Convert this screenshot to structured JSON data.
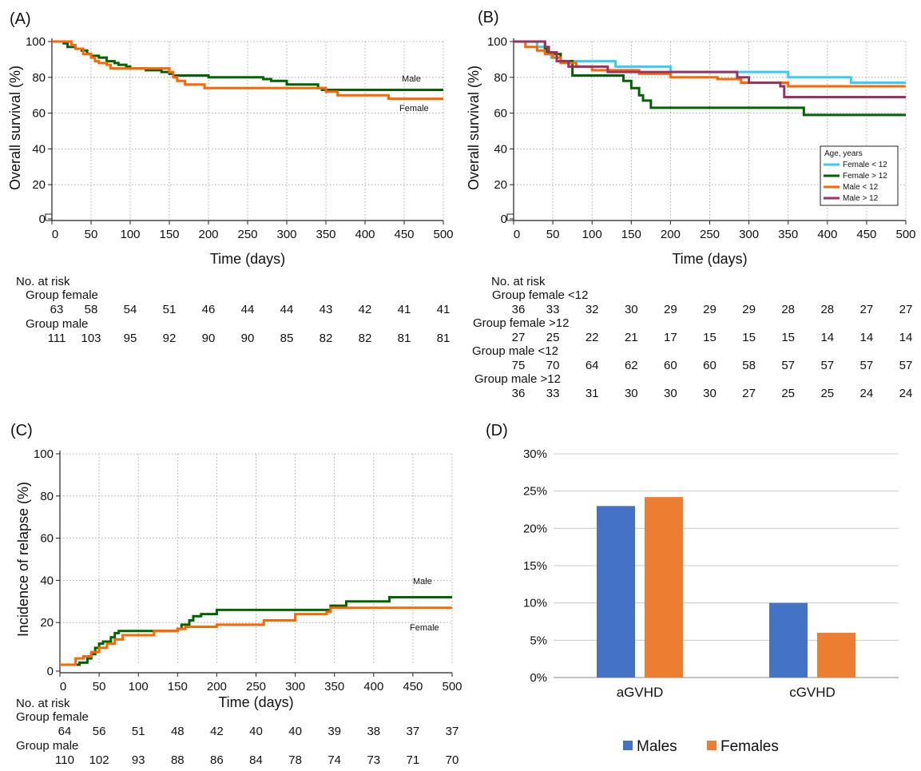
{
  "chart_data": [
    {
      "panel": "(A)",
      "type": "line",
      "step": true,
      "xlabel": "Time (days)",
      "ylabel": "Overall survival (%)",
      "xlim": [
        0,
        500
      ],
      "ylim": [
        0,
        100
      ],
      "xticks": [
        0,
        50,
        100,
        150,
        200,
        250,
        300,
        350,
        400,
        450,
        500
      ],
      "yticks": [
        0,
        20,
        40,
        60,
        80,
        100
      ],
      "grid": true,
      "series": [
        {
          "name": "Male",
          "color": "#006400",
          "x": [
            0,
            15,
            20,
            30,
            38,
            45,
            50,
            60,
            70,
            80,
            85,
            95,
            100,
            120,
            140,
            150,
            155,
            200,
            270,
            280,
            300,
            340,
            345,
            500
          ],
          "y": [
            100,
            99,
            97,
            96,
            95,
            93,
            92,
            91,
            89,
            88,
            87,
            86,
            85,
            84,
            83,
            82,
            81,
            80,
            79,
            78,
            76,
            74,
            73,
            73
          ]
        },
        {
          "name": "Female",
          "color": "#ff6600",
          "x": [
            0,
            25,
            30,
            40,
            50,
            55,
            60,
            70,
            75,
            150,
            155,
            160,
            170,
            195,
            340,
            350,
            365,
            430,
            500
          ],
          "y": [
            100,
            98,
            96,
            93,
            91,
            89,
            88,
            87,
            85,
            83,
            80,
            78,
            76,
            74,
            74,
            72,
            70,
            68,
            68
          ]
        }
      ],
      "risk_table": {
        "title": "No. at risk",
        "groups": [
          {
            "label": "Group female",
            "values": [
              63,
              58,
              54,
              51,
              46,
              44,
              44,
              43,
              42,
              41,
              41
            ]
          },
          {
            "label": "Group male",
            "values": [
              111,
              103,
              95,
              92,
              90,
              90,
              85,
              82,
              82,
              81,
              81
            ]
          }
        ]
      }
    },
    {
      "panel": "(B)",
      "type": "line",
      "step": true,
      "xlabel": "Time (days)",
      "ylabel": "Overall survival (%)",
      "xlim": [
        0,
        500
      ],
      "ylim": [
        0,
        100
      ],
      "xticks": [
        0,
        50,
        100,
        150,
        200,
        250,
        300,
        350,
        400,
        450,
        500
      ],
      "yticks": [
        0,
        20,
        40,
        60,
        80,
        100
      ],
      "grid": true,
      "legend_title": "Age, years",
      "legend_position": "right",
      "series": [
        {
          "name": "Female < 12",
          "color": "#33ccff",
          "x": [
            0,
            30,
            40,
            48,
            60,
            130,
            200,
            270,
            350,
            430,
            500
          ],
          "y": [
            100,
            97,
            94,
            91,
            89,
            86,
            83,
            83,
            80,
            77,
            77
          ]
        },
        {
          "name": "Female > 12",
          "color": "#006400",
          "x": [
            0,
            40,
            42,
            60,
            75,
            140,
            150,
            160,
            165,
            175,
            370,
            500
          ],
          "y": [
            100,
            96,
            93,
            89,
            81,
            78,
            74,
            70,
            67,
            63,
            59,
            59
          ]
        },
        {
          "name": "Male < 12",
          "color": "#ff6600",
          "x": [
            0,
            15,
            30,
            40,
            50,
            60,
            80,
            100,
            160,
            200,
            260,
            290,
            350,
            500
          ],
          "y": [
            100,
            97,
            95,
            93,
            91,
            88,
            86,
            84,
            82,
            80,
            79,
            77,
            75,
            75
          ]
        },
        {
          "name": "Male > 12",
          "color": "#993366",
          "x": [
            0,
            40,
            45,
            55,
            70,
            120,
            130,
            270,
            285,
            300,
            340,
            345,
            500
          ],
          "y": [
            100,
            97,
            94,
            89,
            86,
            83,
            83,
            83,
            80,
            77,
            75,
            69,
            69
          ]
        }
      ],
      "risk_table": {
        "title": "No. at risk",
        "groups": [
          {
            "label": "Group female  <12",
            "values": [
              36,
              33,
              32,
              30,
              29,
              29,
              29,
              28,
              28,
              27,
              27
            ]
          },
          {
            "label": "Group female >12",
            "values": [
              27,
              25,
              22,
              21,
              17,
              15,
              15,
              15,
              14,
              14,
              14
            ]
          },
          {
            "label": "Group male <12",
            "values": [
              75,
              70,
              64,
              62,
              60,
              60,
              58,
              57,
              57,
              57,
              57
            ]
          },
          {
            "label": "Group male >12",
            "values": [
              36,
              33,
              31,
              30,
              30,
              30,
              27,
              25,
              25,
              24,
              24
            ]
          }
        ]
      }
    },
    {
      "panel": "(C)",
      "type": "line",
      "step": true,
      "xlabel": "Time (days)",
      "ylabel": "Incidence of relapse  (%)",
      "xlim": [
        0,
        500
      ],
      "ylim": [
        0,
        100
      ],
      "xticks": [
        0,
        50,
        100,
        150,
        200,
        250,
        300,
        350,
        400,
        450,
        500
      ],
      "yticks": [
        0,
        20,
        40,
        60,
        80,
        100
      ],
      "grid": true,
      "series": [
        {
          "name": "Male",
          "color": "#006400",
          "x": [
            0,
            25,
            35,
            40,
            45,
            50,
            55,
            65,
            70,
            75,
            150,
            155,
            165,
            170,
            180,
            200,
            340,
            345,
            365,
            420,
            500
          ],
          "y": [
            0,
            1,
            3,
            5,
            8,
            10,
            11,
            13,
            15,
            16,
            17,
            19,
            21,
            23,
            24,
            26,
            26,
            28,
            30,
            32,
            32
          ]
        },
        {
          "name": "Female",
          "color": "#ff6600",
          "x": [
            0,
            20,
            30,
            40,
            50,
            60,
            70,
            80,
            120,
            150,
            160,
            200,
            260,
            300,
            340,
            345,
            500
          ],
          "y": [
            0,
            3,
            4,
            6,
            8,
            10,
            12,
            14,
            16,
            17,
            18,
            19,
            21,
            24,
            25,
            27,
            27
          ]
        }
      ],
      "risk_table": {
        "title": "No. at risk",
        "groups": [
          {
            "label": "Group female",
            "values": [
              64,
              56,
              51,
              48,
              42,
              40,
              40,
              39,
              38,
              37,
              37
            ]
          },
          {
            "label": "Group male",
            "values": [
              110,
              102,
              93,
              88,
              86,
              84,
              78,
              74,
              73,
              71,
              70
            ]
          }
        ]
      }
    },
    {
      "panel": "(D)",
      "type": "bar",
      "categories": [
        "aGVHD",
        "cGVHD"
      ],
      "ylim": [
        0,
        30
      ],
      "yticks": [
        "0%",
        "5%",
        "10%",
        "15%",
        "20%",
        "25%",
        "30%"
      ],
      "grid": true,
      "legend_position": "bottom",
      "series": [
        {
          "name": "Males",
          "color": "#4472c4",
          "values": [
            23,
            10
          ]
        },
        {
          "name": "Females",
          "color": "#ed7d31",
          "values": [
            24.2,
            6
          ]
        }
      ]
    }
  ]
}
